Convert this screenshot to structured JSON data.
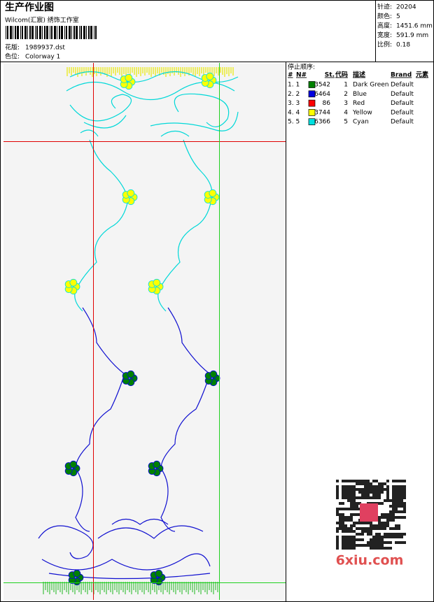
{
  "header": {
    "title": "生产作业图",
    "studio": "Wilcom(汇宸) 绣饰工作室",
    "design_label": "花版:",
    "design": "1989937.dst",
    "colorway_label": "色位:",
    "colorway": "Colorway 1"
  },
  "info": [
    {
      "label": "针迹:",
      "value": "20204"
    },
    {
      "label": "颜色:",
      "value": "5"
    },
    {
      "label": "高度:",
      "value": "1451.6 mm"
    },
    {
      "label": "宽度:",
      "value": "591.9 mm"
    },
    {
      "label": "比例:",
      "value": "0.18"
    }
  ],
  "stop_sequence": {
    "title": "停止顺序:",
    "columns": [
      "#",
      "N#",
      "St.",
      "代码",
      "描述",
      "Brand",
      "元素"
    ],
    "rows": [
      {
        "index": "1. 1",
        "color": "#008000",
        "stitches": "3542",
        "code": "1",
        "description": "Dark Green",
        "brand": "Default"
      },
      {
        "index": "2. 2",
        "color": "#0000e0",
        "stitches": "6464",
        "code": "2",
        "description": "Blue",
        "brand": "Default"
      },
      {
        "index": "3. 3",
        "color": "#ff0000",
        "stitches": "86",
        "code": "3",
        "description": "Red",
        "brand": "Default"
      },
      {
        "index": "4. 4",
        "color": "#ffff00",
        "stitches": "3744",
        "code": "4",
        "description": "Yellow",
        "brand": "Default"
      },
      {
        "index": "5. 5",
        "color": "#00e0e0",
        "stitches": "6366",
        "code": "5",
        "description": "Cyan",
        "brand": "Default"
      }
    ]
  },
  "watermark": "6xiu.com"
}
